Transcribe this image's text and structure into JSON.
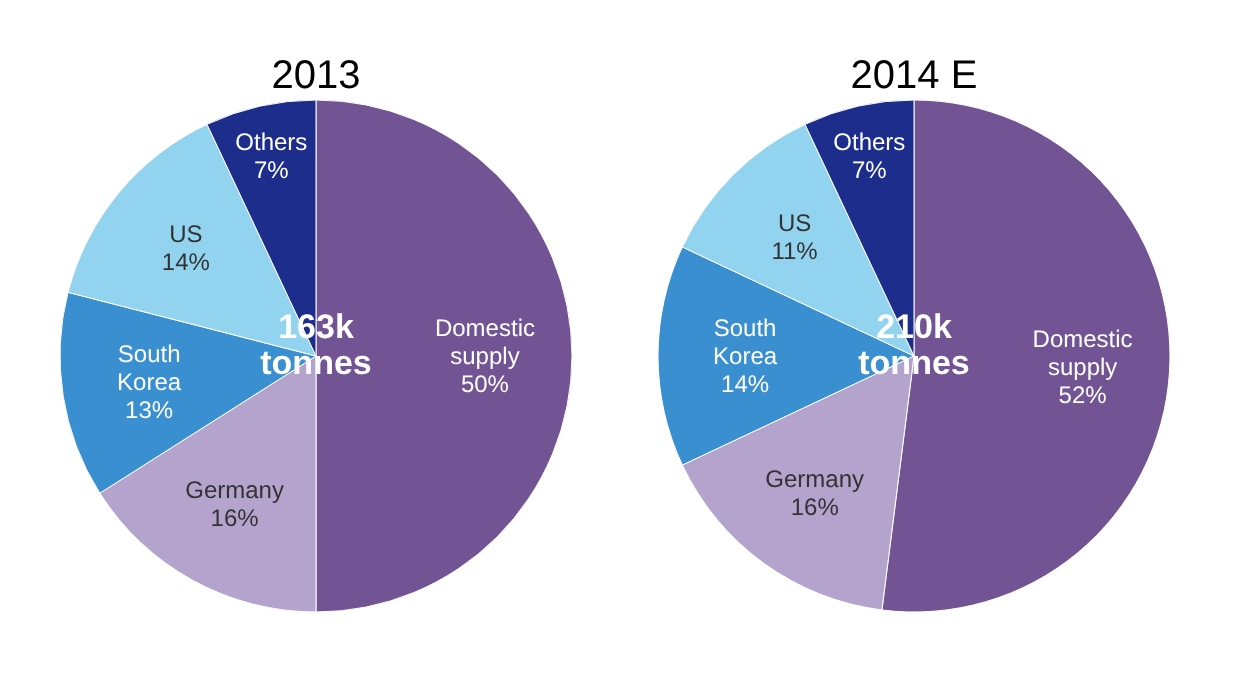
{
  "chart_data": [
    {
      "type": "pie",
      "title": "2013",
      "categories": [
        "Domestic supply",
        "Germany",
        "South Korea",
        "US",
        "Others"
      ],
      "values": [
        50,
        16,
        13,
        14,
        7
      ],
      "colors": [
        "#725394",
        "#b4a3cd",
        "#3a8fd0",
        "#92d4ef",
        "#1c2d8c"
      ],
      "value_labels": [
        "50%",
        "16%",
        "13%",
        "14%",
        "7%"
      ],
      "annotations": [
        "163k tonnes"
      ]
    },
    {
      "type": "pie",
      "title": "2014 E",
      "categories": [
        "Domestic supply",
        "Germany",
        "South Korea",
        "US",
        "Others"
      ],
      "values": [
        52,
        16,
        14,
        11,
        7
      ],
      "colors": [
        "#725394",
        "#b4a3cd",
        "#3a8fd0",
        "#92d4ef",
        "#1c2d8c"
      ],
      "value_labels": [
        "52%",
        "16%",
        "14%",
        "11%",
        "7%"
      ],
      "annotations": [
        "210k tonnes"
      ]
    }
  ]
}
